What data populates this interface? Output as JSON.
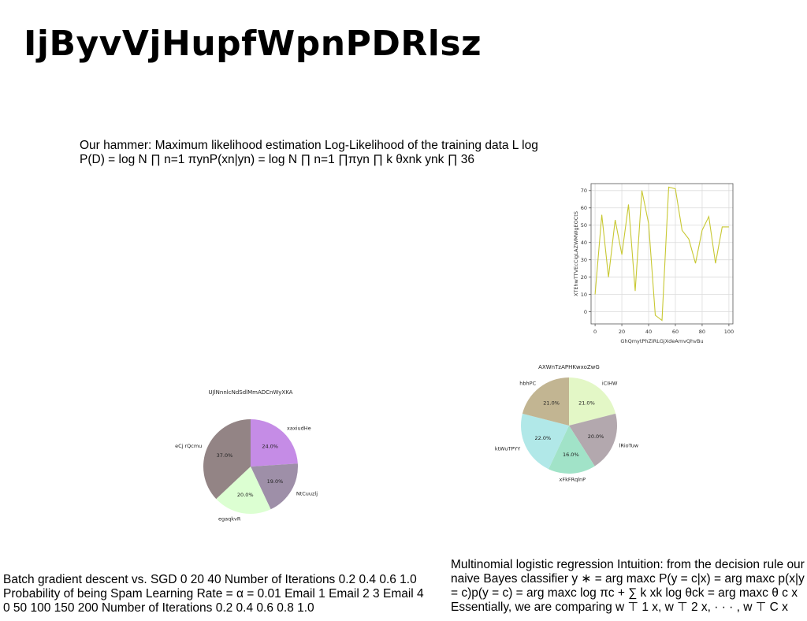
{
  "page": {
    "title": "IjByvVjHupfWpnPDRlsz",
    "text_blocks": [
      "Our hammer: Maximum likelihood estimation Log-Likelihood of the training data L log P(D) = log N ∏ n=1 πynP(xn|yn) = log N ∏ n=1 ∏πyn ∏ k θxnk ynk ∏ 36",
      "Batch gradient descent vs. SGD 0 20 40 Number of Iterations 0.2 0.4 0.6 1.0 Probability of being Spam Learning Rate = α = 0.01 Email 1 Email 2 3 Email 4 0 50 100 150 200 Number of Iterations 0.2 0.4 0.6 0.8 1.0",
      "Multinomial logistic regression Intuition: from the decision rule our naive Bayes classifier y ∗ = arg maxc P(y = c|x) = arg maxc p(x|y = c)p(y = c) = arg maxc log πc + ∑ k xk log θck = arg maxc θ c x Essentially, we are comparing w ⊤ 1 x, w ⊤ 2 x, · · · , w ⊤ C x"
    ]
  },
  "chart_data": [
    {
      "type": "line",
      "title": "",
      "xlabel": "GhQmytPhZiRLGjXdeAmvQhvBu",
      "ylabel": "XTEhwTTVEcCigLAZWMWgEOCtS",
      "x": [
        0,
        5,
        10,
        15,
        20,
        25,
        30,
        35,
        40,
        45,
        50,
        55,
        60,
        65,
        70,
        75,
        80,
        85,
        90,
        95,
        100
      ],
      "y": [
        10,
        56,
        20,
        53,
        33,
        62,
        12,
        70,
        51,
        -2,
        -5,
        72,
        71,
        47,
        42,
        28,
        47,
        55,
        28,
        49,
        49
      ],
      "xticks": [
        "0",
        "20",
        "40",
        "60",
        "80",
        "100"
      ],
      "yticks": [
        "0",
        "10",
        "20",
        "30",
        "40",
        "50",
        "60",
        "70"
      ],
      "xlim": [
        -3,
        103
      ],
      "ylim": [
        -7,
        74
      ],
      "grid": true,
      "color": "#c8c832"
    },
    {
      "type": "pie",
      "title": "UJlNnnlcNdSdlMmADCnWyXKA",
      "labels": [
        "xaxiudHe",
        "NtCuuzlj",
        "egaqkvR",
        "eCj rQcmu"
      ],
      "values": [
        24.0,
        19.0,
        20.0,
        37.0
      ],
      "pct_labels": [
        "24.0%",
        "19.0%",
        "20.0%",
        "37.0%"
      ],
      "colors": [
        "#c58ce6",
        "#9e8fa8",
        "#dcffd2",
        "#938485"
      ]
    },
    {
      "type": "pie",
      "title": "AXWnTzAPHKwxoZwG",
      "labels": [
        "iCIHW",
        "lRioTuw",
        "xFkFRqlnP",
        "ktWuTPYY",
        "hbhPC"
      ],
      "values": [
        21.0,
        20.0,
        16.0,
        22.0,
        21.0
      ],
      "pct_labels": [
        "21.0%",
        "20.0%",
        "16.0%",
        "22.0%",
        "21.0%"
      ],
      "colors": [
        "#e3f7c6",
        "#b3a8ae",
        "#a1e3c8",
        "#b1e8e8",
        "#c2b592"
      ]
    }
  ]
}
